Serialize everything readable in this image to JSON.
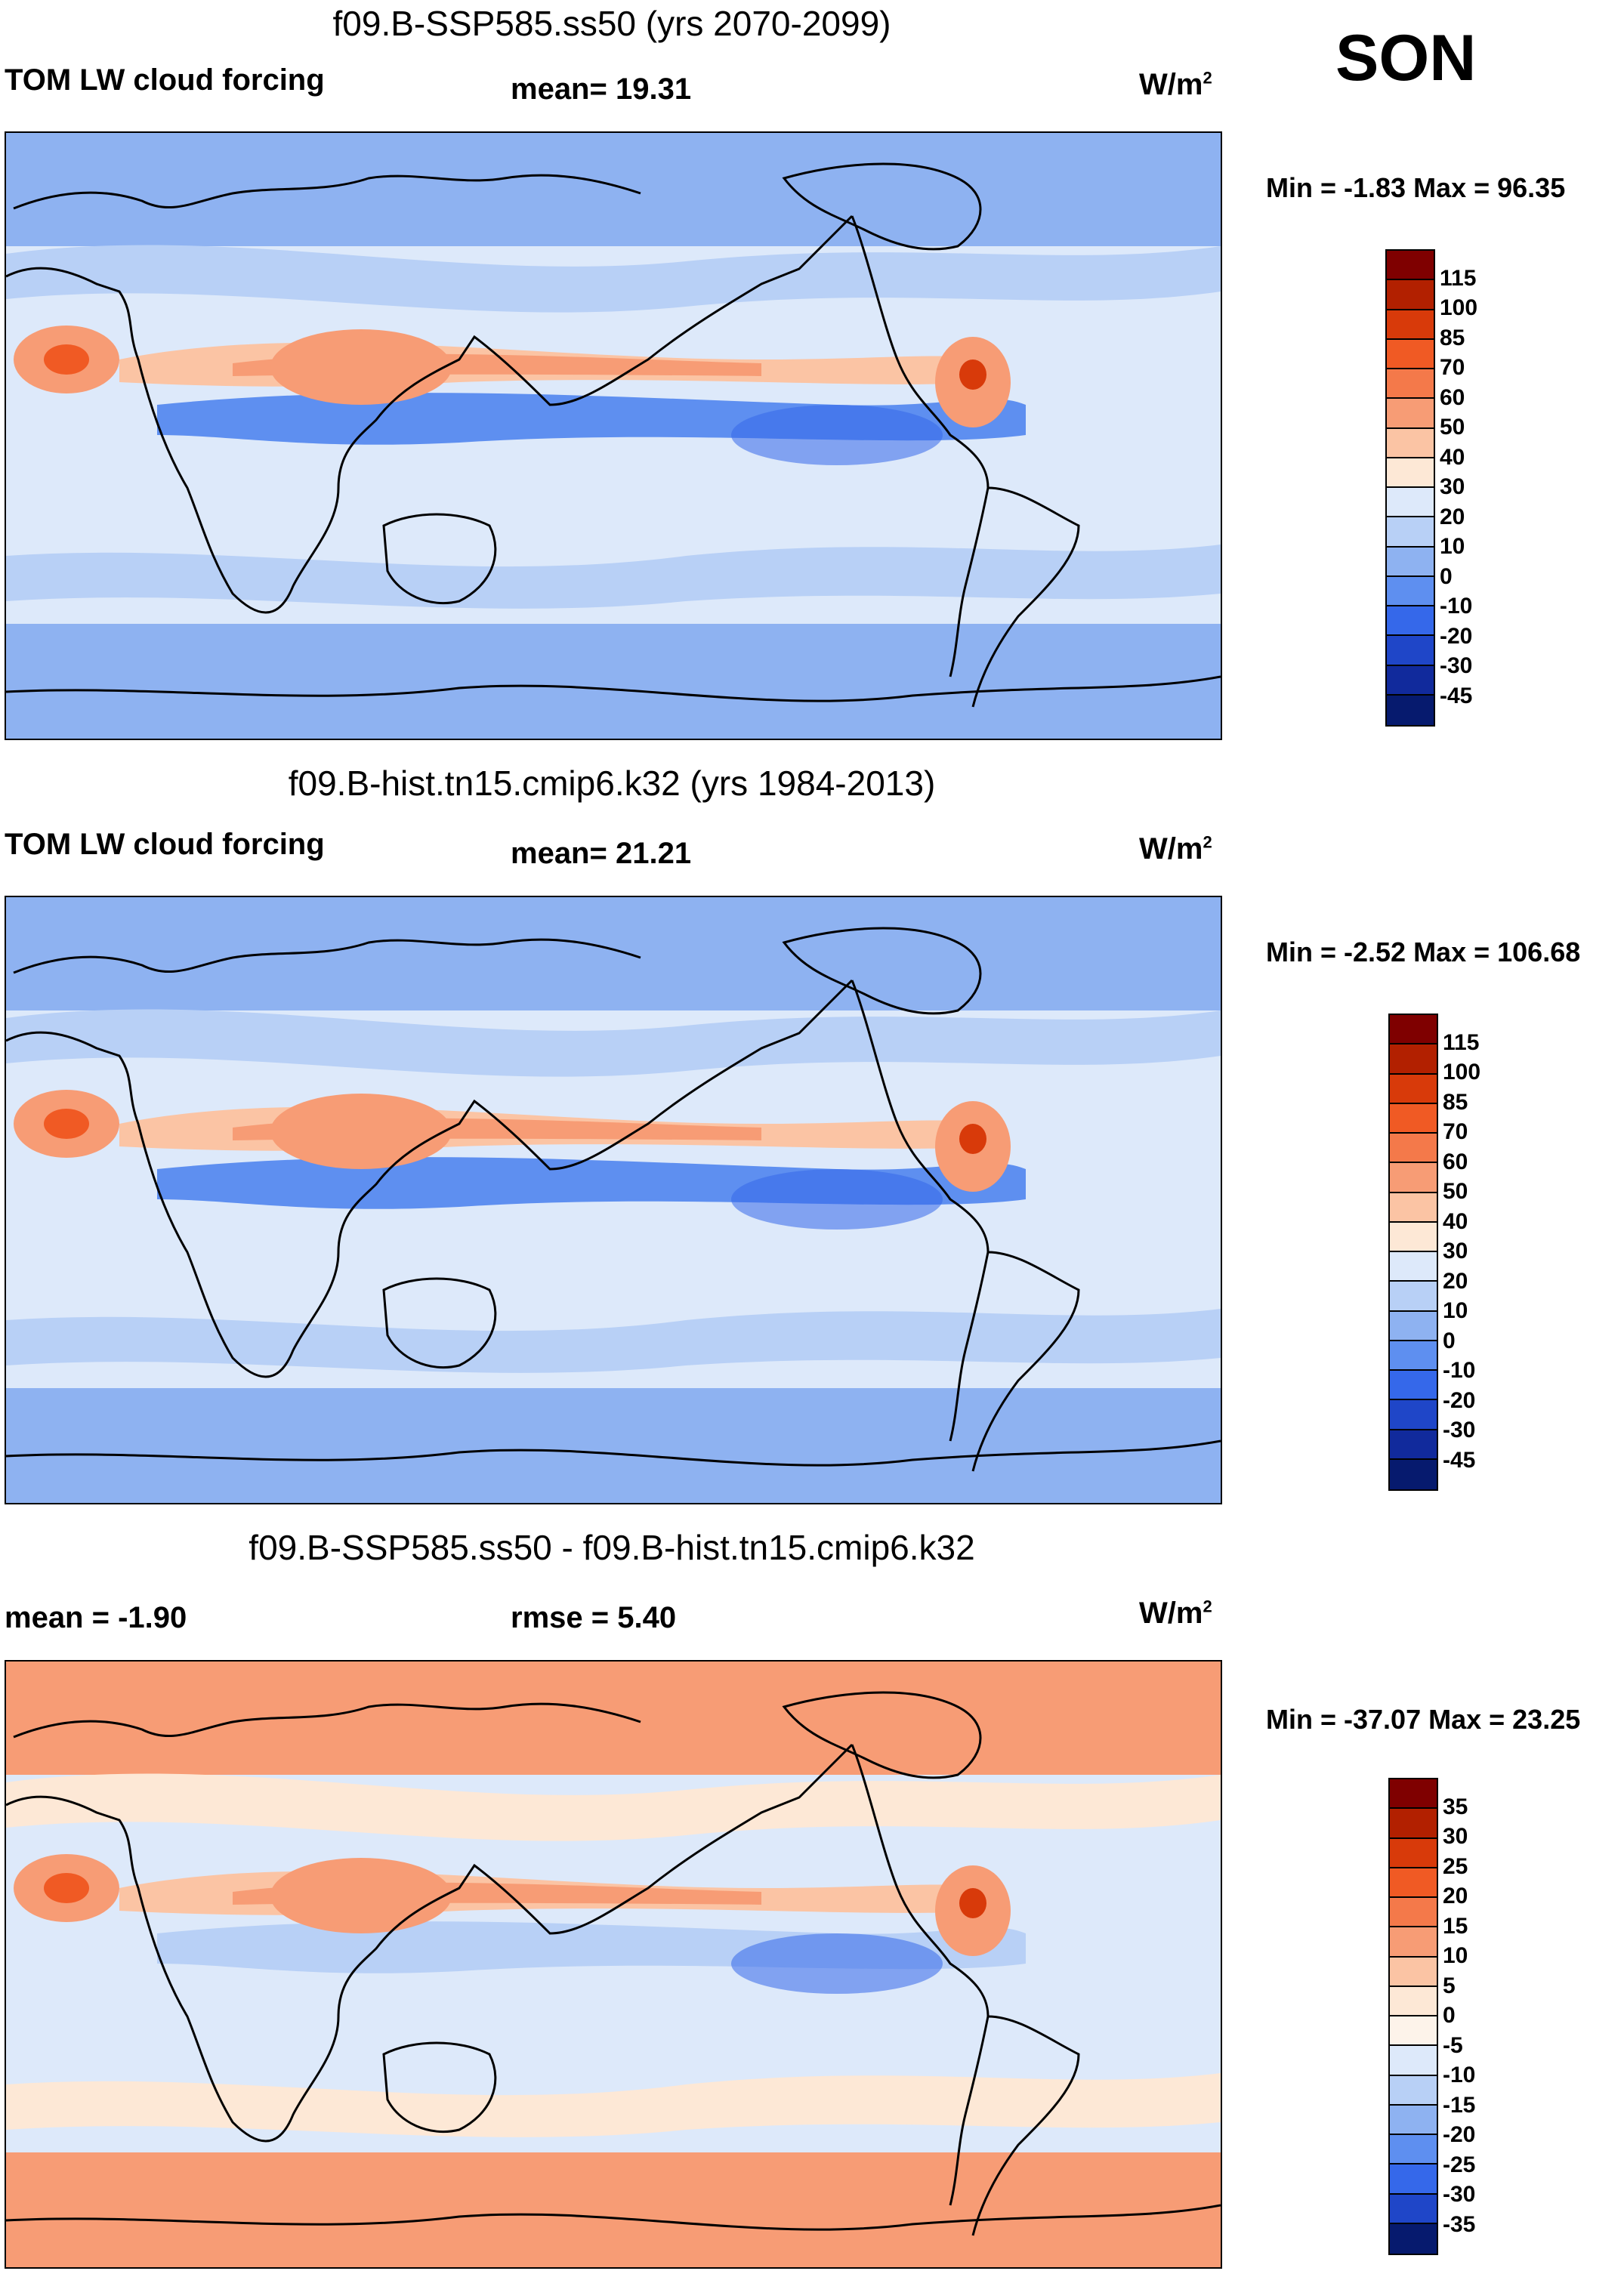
{
  "season": "SON",
  "panels": [
    {
      "title": "f09.B-SSP585.ss50 (yrs 2070-2099)",
      "left_label": "TOM LW cloud forcing",
      "center_label": "mean=  19.31",
      "units": "W/m",
      "units_sup": "2",
      "min_max": "Min =  -1.83 Max =  96.35",
      "colorbar_labels": [
        "115",
        "100",
        "85",
        "70",
        "60",
        "50",
        "40",
        "30",
        "20",
        "10",
        "0",
        "-10",
        "-20",
        "-30",
        "-45"
      ],
      "colorbar_colors": [
        "#7f0000",
        "#b22000",
        "#d83a0a",
        "#f05a24",
        "#f4794a",
        "#f79c75",
        "#fbc4a4",
        "#fde8d6",
        "#dde9fa",
        "#b8d0f6",
        "#8eb2f1",
        "#5e8ff0",
        "#3568ea",
        "#1f46c8",
        "#112a9c",
        "#061a6e"
      ],
      "map_palette": {
        "band_hi": "#8eb2f1",
        "band_mid": "#b8d0f6",
        "band_lo": "#dde9fa",
        "warm1": "#fbc4a4",
        "warm2": "#f79c75",
        "warm3": "#f05a24",
        "hot": "#d83a0a",
        "cold": "#5e8ff0",
        "deep": "#3568ea"
      }
    },
    {
      "title": "f09.B-hist.tn15.cmip6.k32 (yrs 1984-2013)",
      "left_label": "TOM LW cloud forcing",
      "center_label": "mean=  21.21",
      "units": "W/m",
      "units_sup": "2",
      "min_max": "Min =  -2.52 Max = 106.68",
      "colorbar_labels": [
        "115",
        "100",
        "85",
        "70",
        "60",
        "50",
        "40",
        "30",
        "20",
        "10",
        "0",
        "-10",
        "-20",
        "-30",
        "-45"
      ],
      "colorbar_colors": [
        "#7f0000",
        "#b22000",
        "#d83a0a",
        "#f05a24",
        "#f4794a",
        "#f79c75",
        "#fbc4a4",
        "#fde8d6",
        "#dde9fa",
        "#b8d0f6",
        "#8eb2f1",
        "#5e8ff0",
        "#3568ea",
        "#1f46c8",
        "#112a9c",
        "#061a6e"
      ],
      "map_palette": {
        "band_hi": "#8eb2f1",
        "band_mid": "#b8d0f6",
        "band_lo": "#dde9fa",
        "warm1": "#fbc4a4",
        "warm2": "#f79c75",
        "warm3": "#f05a24",
        "hot": "#d83a0a",
        "cold": "#5e8ff0",
        "deep": "#3568ea"
      }
    },
    {
      "title": "f09.B-SSP585.ss50 - f09.B-hist.tn15.cmip6.k32",
      "left_label": "mean =  -1.90",
      "center_label": "rmse =   5.40",
      "units": "W/m",
      "units_sup": "2",
      "min_max": "Min = -37.07 Max =  23.25",
      "colorbar_labels": [
        "35",
        "30",
        "25",
        "20",
        "15",
        "10",
        "5",
        "0",
        "-5",
        "-10",
        "-15",
        "-20",
        "-25",
        "-30",
        "-35"
      ],
      "colorbar_colors": [
        "#7f0000",
        "#b22000",
        "#d83a0a",
        "#f05a24",
        "#f4794a",
        "#f79c75",
        "#fbc4a4",
        "#fde8d6",
        "#fdf3ea",
        "#dde9fa",
        "#b8d0f6",
        "#8eb2f1",
        "#5e8ff0",
        "#3568ea",
        "#1f46c8",
        "#061a6e"
      ],
      "map_palette": {
        "band_hi": "#f79c75",
        "band_mid": "#fde8d6",
        "band_lo": "#dde9fa",
        "warm1": "#fbc4a4",
        "warm2": "#f79c75",
        "warm3": "#f05a24",
        "hot": "#d83a0a",
        "cold": "#b8d0f6",
        "deep": "#3568ea"
      }
    }
  ]
}
